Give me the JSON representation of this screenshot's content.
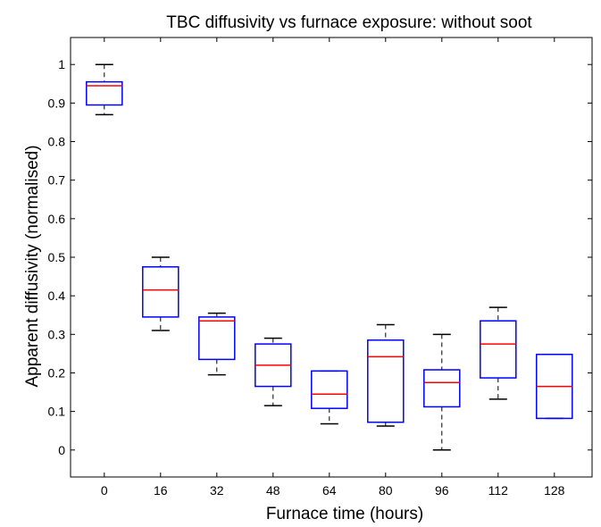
{
  "chart_data": {
    "type": "box",
    "title": "TBC diffusivity vs furnace exposure: without soot",
    "xlabel": "Furnace time (hours)",
    "ylabel": "Apparent diffusivity (normalised)",
    "categories": [
      "0",
      "16",
      "32",
      "48",
      "64",
      "80",
      "96",
      "112",
      "128"
    ],
    "ylim": [
      -0.07,
      1.07
    ],
    "yticks": [
      0,
      0.1,
      0.2,
      0.3,
      0.4,
      0.5,
      0.6,
      0.7,
      0.8,
      0.9,
      1
    ],
    "ytick_labels": [
      "0",
      "0.1",
      "0.2",
      "0.3",
      "0.4",
      "0.5",
      "0.6",
      "0.7",
      "0.8",
      "0.9",
      "1"
    ],
    "boxes": [
      {
        "category": "0",
        "whisker_low": 0.87,
        "q1": 0.895,
        "median": 0.945,
        "q3": 0.955,
        "whisker_high": 1.0
      },
      {
        "category": "16",
        "whisker_low": 0.31,
        "q1": 0.345,
        "median": 0.415,
        "q3": 0.475,
        "whisker_high": 0.5
      },
      {
        "category": "32",
        "whisker_low": 0.195,
        "q1": 0.235,
        "median": 0.335,
        "q3": 0.345,
        "whisker_high": 0.355
      },
      {
        "category": "48",
        "whisker_low": 0.115,
        "q1": 0.165,
        "median": 0.22,
        "q3": 0.275,
        "whisker_high": 0.29
      },
      {
        "category": "64",
        "whisker_low": 0.068,
        "q1": 0.108,
        "median": 0.145,
        "q3": 0.205,
        "whisker_high": 0.205
      },
      {
        "category": "80",
        "whisker_low": 0.062,
        "q1": 0.072,
        "median": 0.242,
        "q3": 0.285,
        "whisker_high": 0.325
      },
      {
        "category": "96",
        "whisker_low": 0.0,
        "q1": 0.112,
        "median": 0.175,
        "q3": 0.208,
        "whisker_high": 0.3
      },
      {
        "category": "112",
        "whisker_low": 0.132,
        "q1": 0.187,
        "median": 0.275,
        "q3": 0.335,
        "whisker_high": 0.37
      },
      {
        "category": "128",
        "whisker_low": 0.082,
        "q1": 0.082,
        "median": 0.165,
        "q3": 0.248,
        "whisker_high": 0.248
      }
    ],
    "grid": false,
    "colors": {
      "box": "#0000ff",
      "median": "#ff0000",
      "whisker": "#000000",
      "axes": "#000000",
      "background": "#ffffff"
    }
  }
}
